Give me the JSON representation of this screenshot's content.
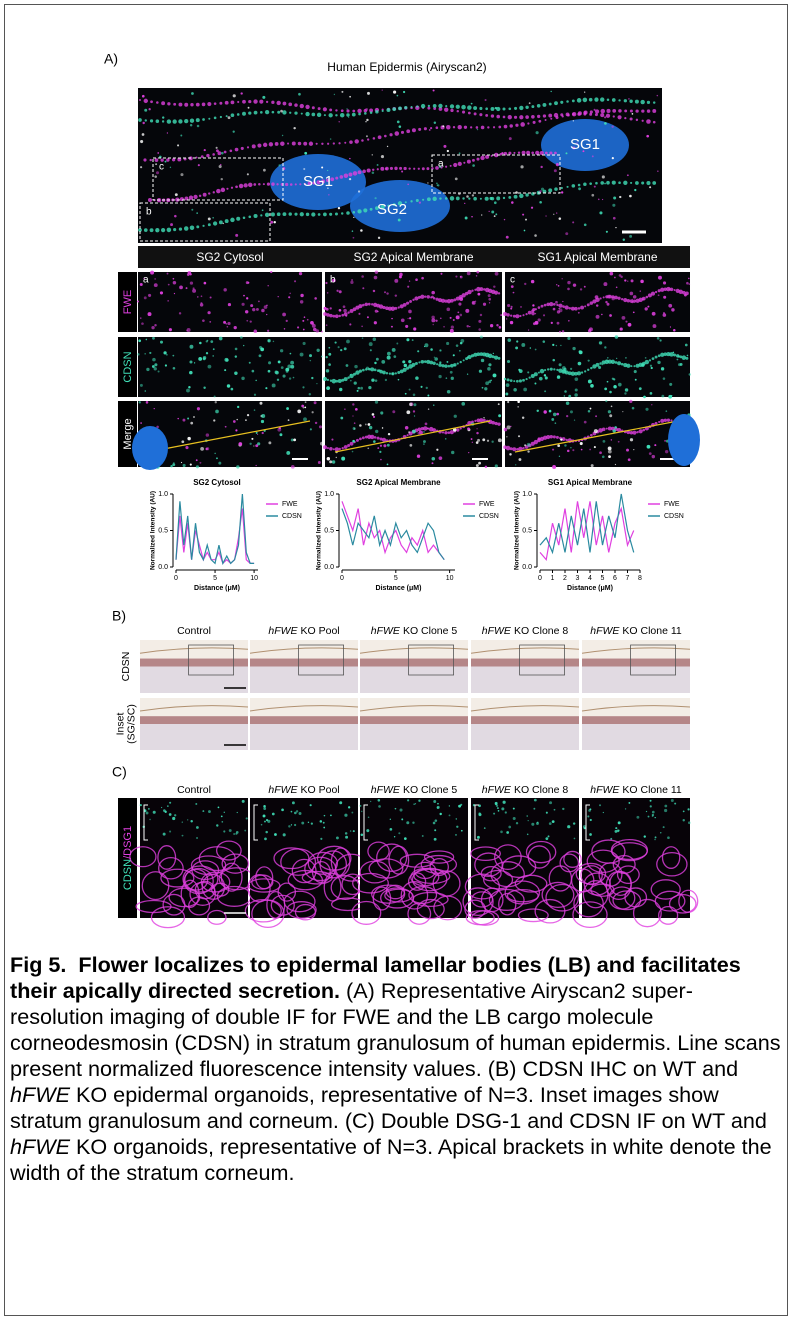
{
  "panel_a": {
    "label": "A)",
    "title": "Human Epidermis (Airyscan2)",
    "nuclei": [
      "SG1",
      "SG2",
      "SG1"
    ],
    "boxes": [
      "a",
      "b",
      "c"
    ],
    "columns": [
      "SG2 Cytosol",
      "SG2 Apical Membrane",
      "SG1 Apical Membrane"
    ],
    "column_letters": [
      "a",
      "b",
      "c"
    ],
    "rows": [
      "FWE",
      "CDSN",
      "Merge"
    ],
    "line_scans": [
      {
        "type": "line",
        "title": "SG2 Cytosol",
        "x_label": "Distance (μM)",
        "y_label": "Normalized Intensity (AU)",
        "x": [
          0,
          0.5,
          1,
          1.5,
          2,
          2.5,
          3,
          3.5,
          4,
          4.5,
          5,
          5.5,
          6,
          6.5,
          7,
          7.5,
          8,
          8.5,
          9,
          9.5,
          10
        ],
        "series": [
          {
            "name": "FWE",
            "color": "#e040e0",
            "values": [
              0.1,
              0.7,
              0.2,
              0.6,
              0.1,
              0.5,
              0.3,
              0.1,
              0.2,
              0.1,
              0.1,
              0.2,
              0.05,
              0.1,
              0.05,
              0.1,
              0.4,
              0.8,
              0.1,
              0.05,
              0.05
            ]
          },
          {
            "name": "CDSN",
            "color": "#2a8aa0",
            "values": [
              0.1,
              0.9,
              0.3,
              0.7,
              0.1,
              0.6,
              0.2,
              0.1,
              0.3,
              0.1,
              0.05,
              0.3,
              0.05,
              0.15,
              0.05,
              0.1,
              0.3,
              1.0,
              0.2,
              0.05,
              0.05
            ]
          }
        ],
        "xlim": [
          0,
          10.5
        ],
        "xticks": [
          0,
          5,
          10
        ],
        "ylim": [
          0,
          1
        ],
        "yticks": [
          {
            "value": 0,
            "label": "0.0"
          },
          {
            "value": 0.5,
            "label": "0.5"
          },
          {
            "value": 1,
            "label": "1.0"
          }
        ]
      },
      {
        "type": "line",
        "title": "SG2 Apical Membrane",
        "x_label": "Distance (μM)",
        "y_label": "Normalized Intensity (AU)",
        "x": [
          0,
          0.5,
          1,
          1.5,
          2,
          2.5,
          3,
          3.5,
          4,
          4.5,
          5,
          5.5,
          6,
          6.5,
          7,
          7.5,
          8,
          8.5,
          9,
          9.5
        ],
        "series": [
          {
            "name": "FWE",
            "color": "#e040e0",
            "values": [
              0.9,
              0.7,
              0.5,
              0.8,
              0.3,
              0.6,
              0.4,
              0.5,
              0.2,
              0.4,
              0.5,
              0.3,
              0.2,
              0.4,
              0.3,
              0.5,
              0.2,
              0.3,
              0.2,
              0.1
            ]
          },
          {
            "name": "CDSN",
            "color": "#2a8aa0",
            "values": [
              0.8,
              0.6,
              0.3,
              0.6,
              0.5,
              0.4,
              0.7,
              0.3,
              0.5,
              0.3,
              0.6,
              0.4,
              0.5,
              0.3,
              0.2,
              0.4,
              0.6,
              0.5,
              0.2,
              0.1
            ]
          }
        ],
        "xlim": [
          0,
          10.5
        ],
        "xticks": [
          0,
          5,
          10
        ],
        "ylim": [
          0,
          1
        ],
        "yticks": [
          {
            "value": 0,
            "label": "0.0"
          },
          {
            "value": 0.5,
            "label": "0.5"
          },
          {
            "value": 1,
            "label": "1.0"
          }
        ]
      },
      {
        "type": "line",
        "title": "SG1 Apical Membrane",
        "x_label": "Distance (μM)",
        "y_label": "Normalized Intensity (AU)",
        "x": [
          0,
          0.5,
          1,
          1.5,
          2,
          2.5,
          3,
          3.5,
          4,
          4.5,
          5,
          5.5,
          6,
          6.5,
          7,
          7.5
        ],
        "series": [
          {
            "name": "FWE",
            "color": "#e040e0",
            "values": [
              0.2,
              0.1,
              0.6,
              0.3,
              0.8,
              0.2,
              0.9,
              0.4,
              0.9,
              0.3,
              0.7,
              0.2,
              0.6,
              0.8,
              0.3,
              0.5
            ]
          },
          {
            "name": "CDSN",
            "color": "#2a8aa0",
            "values": [
              0.3,
              0.4,
              0.2,
              0.6,
              0.2,
              0.7,
              0.3,
              0.8,
              0.2,
              0.9,
              0.3,
              0.7,
              0.4,
              1.0,
              0.5,
              0.2
            ]
          }
        ],
        "xlim": [
          0,
          8
        ],
        "xticks": [
          0,
          1,
          2,
          3,
          4,
          5,
          6,
          7,
          8
        ],
        "ylim": [
          0,
          1
        ],
        "yticks": [
          {
            "value": 0,
            "label": "0.0"
          },
          {
            "value": 0.5,
            "label": "0.5"
          },
          {
            "value": 1,
            "label": "1.0"
          }
        ]
      }
    ]
  },
  "panel_b": {
    "label": "B)",
    "columns": [
      {
        "text": "Control"
      },
      {
        "gene": "hFWE",
        "text": "KO Pool"
      },
      {
        "gene": "hFWE",
        "text": "KO Clone 5"
      },
      {
        "gene": "hFWE",
        "text": "KO Clone 8"
      },
      {
        "gene": "hFWE",
        "text": "KO Clone 11"
      }
    ],
    "row_labels": [
      [
        "CDSN"
      ],
      [
        "Inset",
        "(SG/SC)"
      ]
    ]
  },
  "panel_c": {
    "label": "C)",
    "columns": [
      {
        "text": "Control"
      },
      {
        "gene": "hFWE",
        "text": "KO Pool"
      },
      {
        "gene": "hFWE",
        "text": "KO Clone 5"
      },
      {
        "gene": "hFWE",
        "text": "KO Clone 8"
      },
      {
        "gene": "hFWE",
        "text": "KO Clone 11"
      }
    ],
    "row_label_parts": [
      "CDSN",
      "/DSG1"
    ]
  },
  "caption": {
    "label": "Fig 5.",
    "heading": "Flower localizes to epidermal lamellar bodies (LB) and facilitates their apically directed secretion.",
    "body": [
      "(A) Representative Airyscan2 super-resolution imaging of double IF for FWE and the LB cargo molecule corneodesmosin (CDSN) in stratum granulosum of human epidermis. Line scans present normalized fluorescence intensity values. (B) CDSN IHC on WT and ",
      "hFWE",
      " KO epidermal organoids, representative of N=3. Inset images show stratum granulosum and corneum. (C) Double DSG-1 and CDSN IF on WT and ",
      "hFWE",
      " KO organoids, representative of N=3. Apical brackets in white denote the width of the stratum corneum."
    ]
  }
}
